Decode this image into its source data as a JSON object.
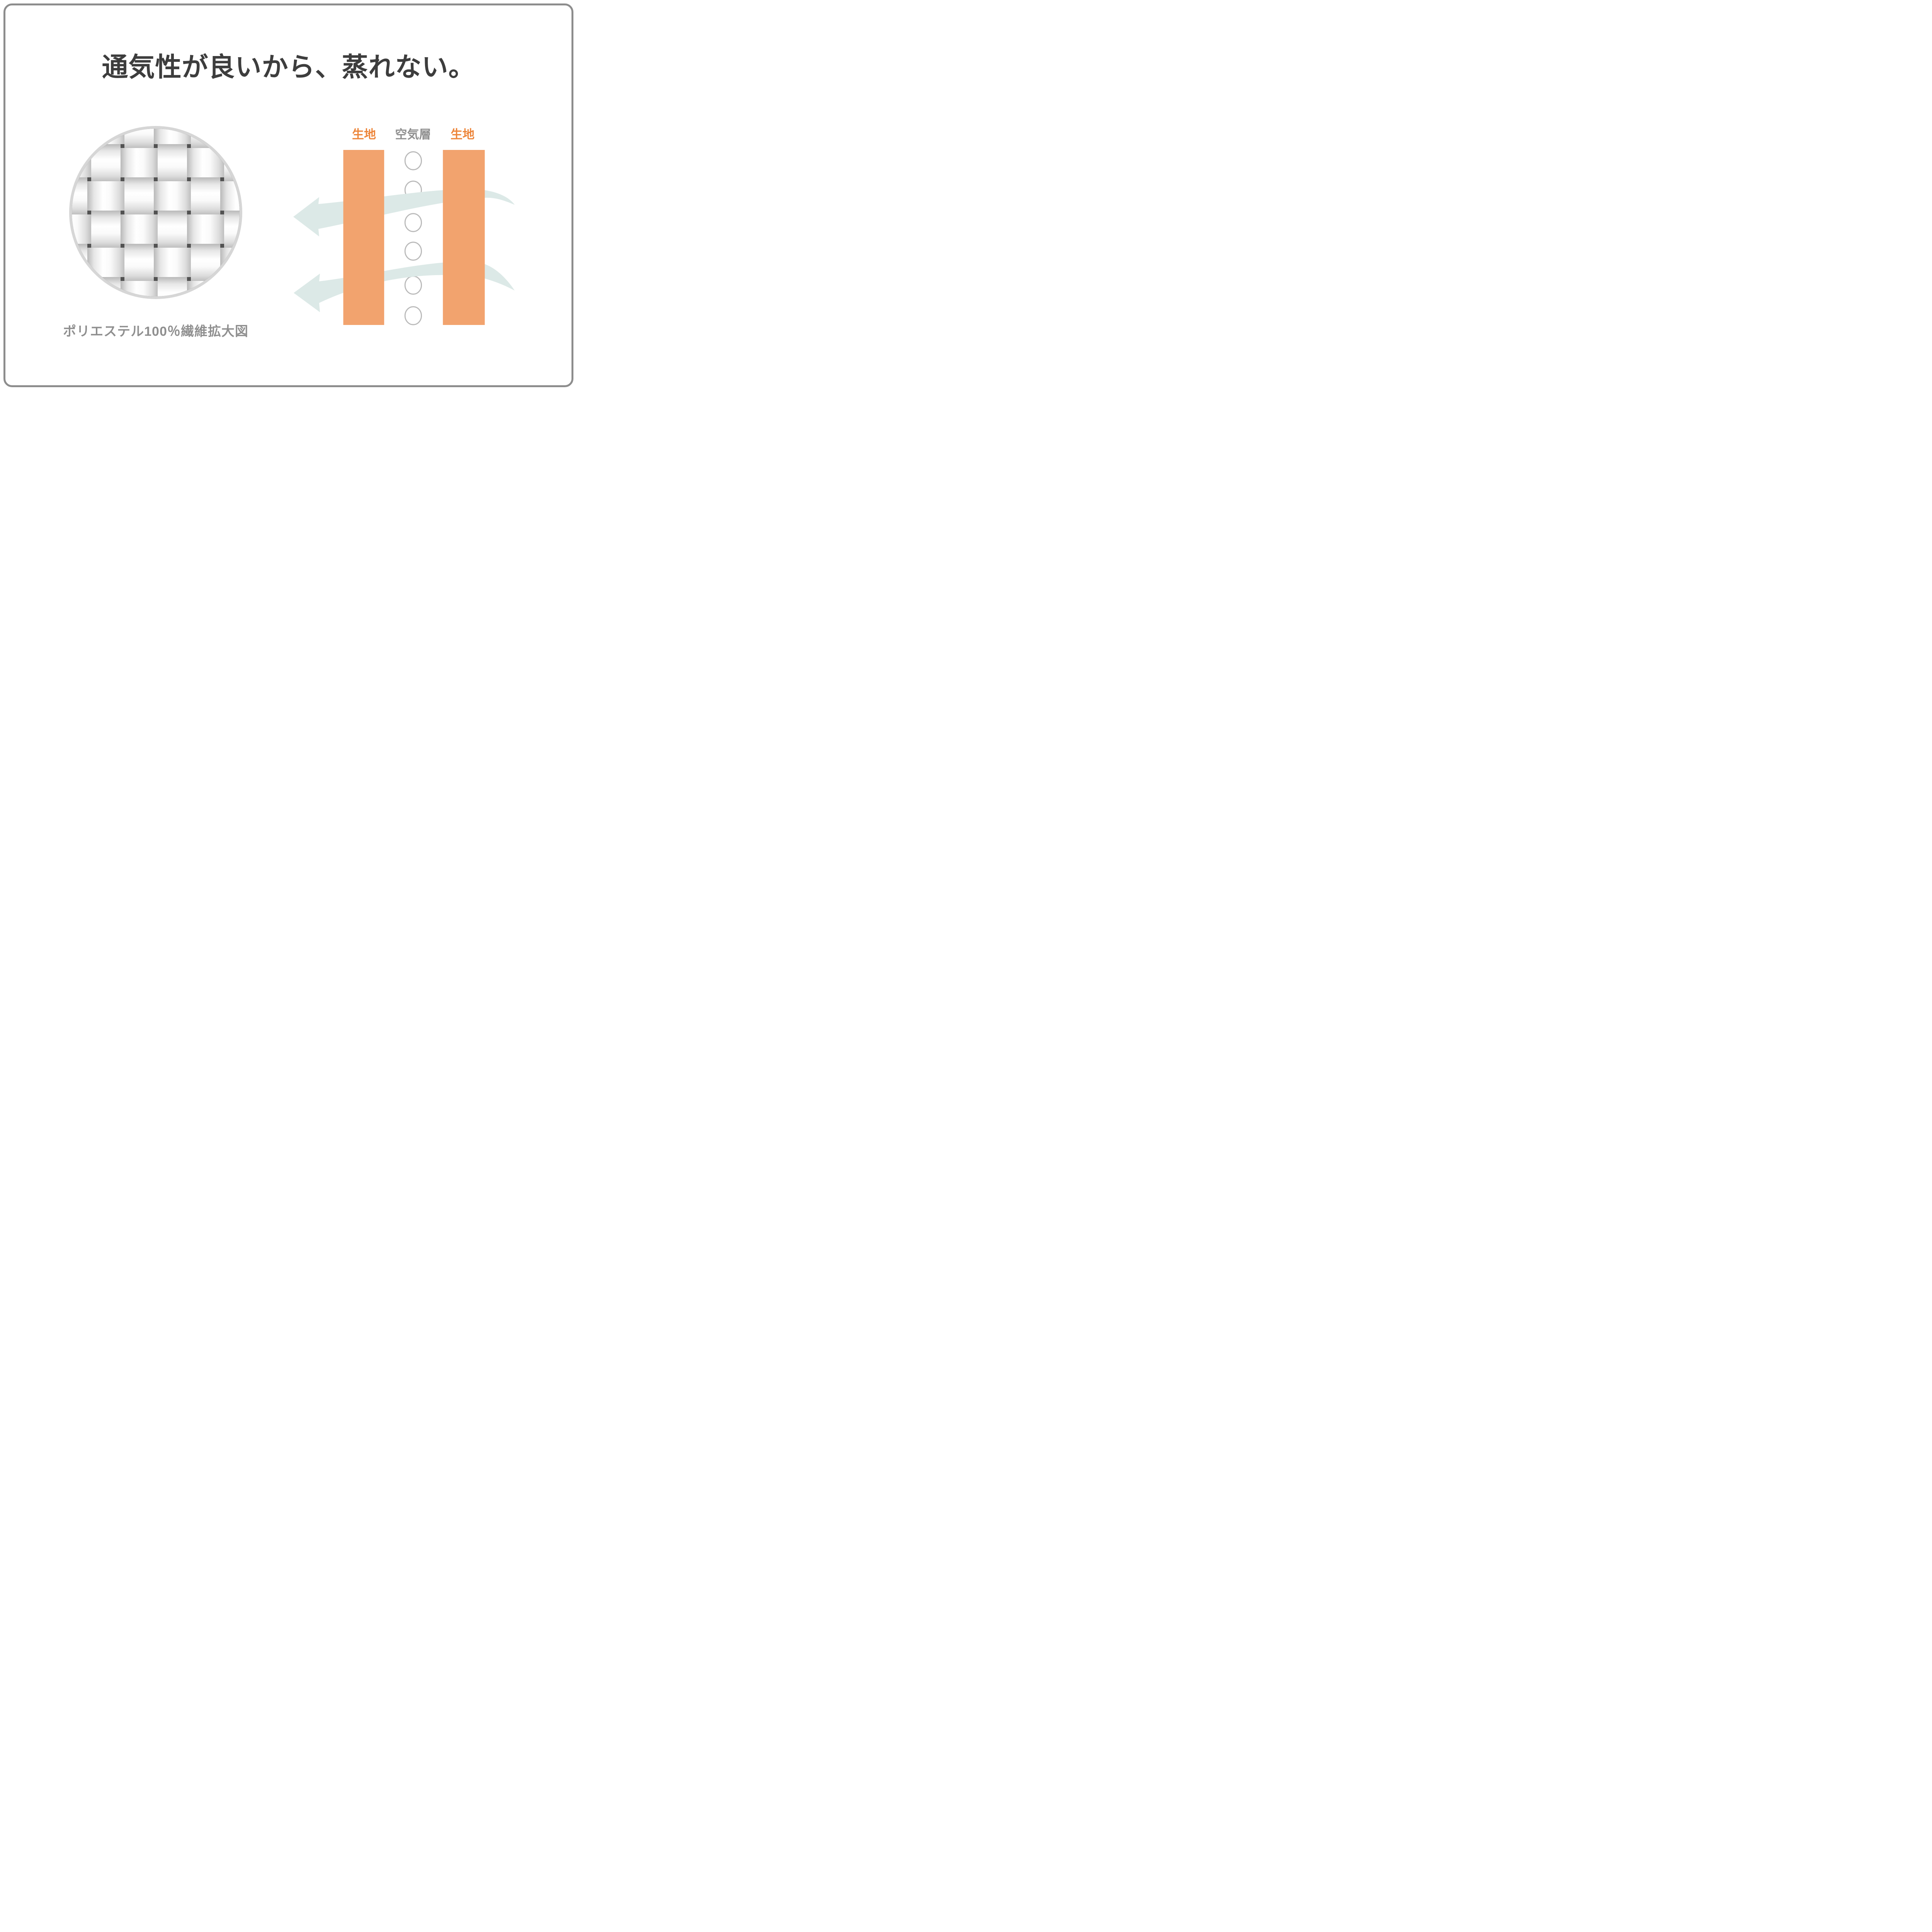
{
  "title": "通気性が良いから、蒸れない。",
  "left_figure": {
    "caption": "ポリエステル100％繊維拡大図"
  },
  "right_diagram": {
    "fabric_label_left": "生地",
    "air_layer_label": "空気層",
    "fabric_label_right": "生地",
    "air_bubble_count": 6
  },
  "colors": {
    "fabric_bar_orange": "#F2A36E",
    "fabric_label_orange": "#ED863B",
    "air_layer_label_gray": "#8F8F8F",
    "airflow_arrow_teal": "#DCE9E7",
    "title_dark_gray": "#3D3D3D",
    "caption_gray": "#8F8F8F",
    "frame_border_gray": "#8D8D8D"
  }
}
